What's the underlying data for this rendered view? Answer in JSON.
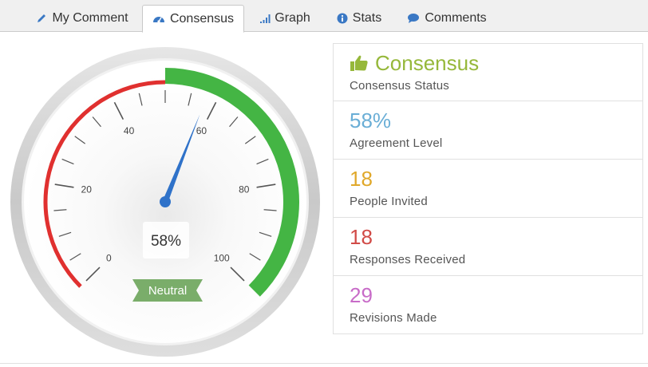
{
  "tabs": [
    {
      "label": "My Comment",
      "icon": "pencil-icon"
    },
    {
      "label": "Consensus",
      "icon": "dashboard-icon"
    },
    {
      "label": "Graph",
      "icon": "signal-bars-icon"
    },
    {
      "label": "Stats",
      "icon": "info-circle-icon"
    },
    {
      "label": "Comments",
      "icon": "speech-bubble-icon"
    }
  ],
  "active_tab": "Consensus",
  "gauge": {
    "value": 58,
    "value_text": "58%",
    "min": 0,
    "max": 100,
    "tick_labels": [
      "0",
      "20",
      "40",
      "60",
      "80",
      "100"
    ],
    "status_label": "Neutral",
    "colors": {
      "low": "#e0302f",
      "high": "#44b544",
      "needle": "#2f72c9",
      "ribbon": "#7aad6a"
    }
  },
  "stats": [
    {
      "value": "Consensus",
      "label": "Consensus Status",
      "color": "#96b83a",
      "icon": "thumbs-up-icon"
    },
    {
      "value": "58%",
      "label": "Agreement Level",
      "color": "#6aaed6"
    },
    {
      "value": "18",
      "label": "People Invited",
      "color": "#e0a82a"
    },
    {
      "value": "18",
      "label": "Responses Received",
      "color": "#d14b47"
    },
    {
      "value": "29",
      "label": "Revisions Made",
      "color": "#c86cc8"
    }
  ]
}
